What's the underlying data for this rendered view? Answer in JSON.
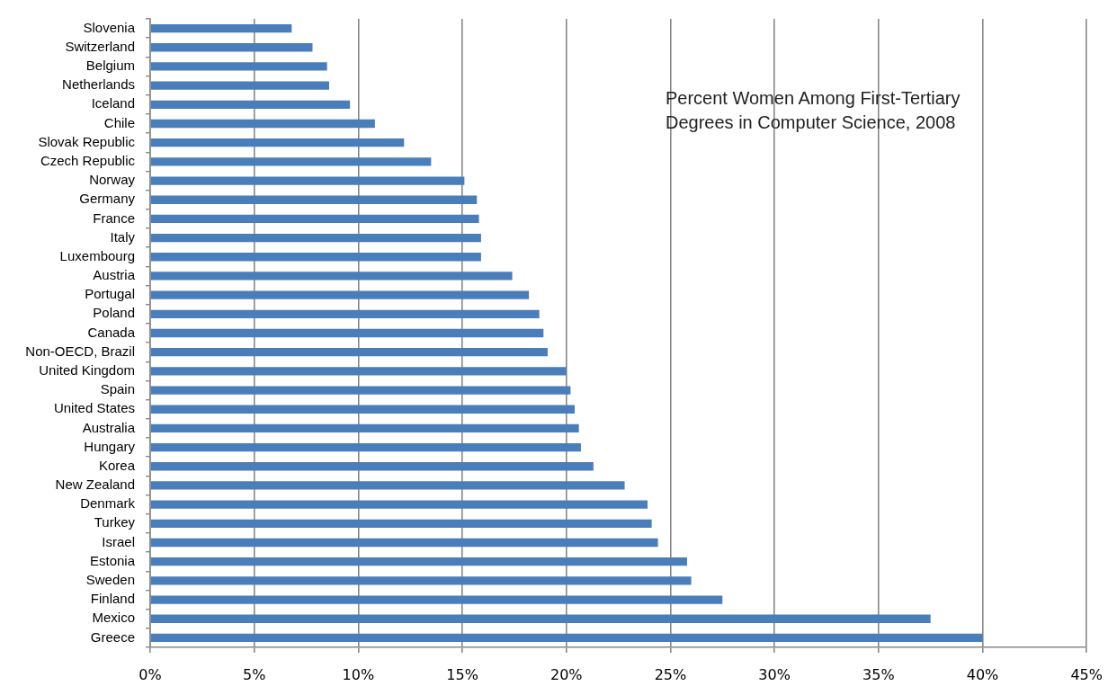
{
  "chart_data": {
    "type": "bar",
    "orientation": "horizontal",
    "title": "Percent Women Among First-Tertiary Degrees in Computer Science, 2008",
    "categories": [
      "Slovenia",
      "Switzerland",
      "Belgium",
      "Netherlands",
      "Iceland",
      "Chile",
      "Slovak Republic",
      "Czech Republic",
      "Norway",
      "Germany",
      "France",
      "Italy",
      "Luxembourg",
      "Austria",
      "Portugal",
      "Poland",
      "Canada",
      "Non-OECD, Brazil",
      "United Kingdom",
      "Spain",
      "United States",
      "Australia",
      "Hungary",
      "Korea",
      "New Zealand",
      "Denmark",
      "Turkey",
      "Israel",
      "Estonia",
      "Sweden",
      "Finland",
      "Mexico",
      "Greece"
    ],
    "values": [
      6.8,
      7.8,
      8.5,
      8.6,
      9.6,
      10.8,
      12.2,
      13.5,
      15.1,
      15.7,
      15.8,
      15.9,
      15.9,
      17.4,
      18.2,
      18.7,
      18.9,
      19.1,
      20.0,
      20.2,
      20.4,
      20.6,
      20.7,
      21.3,
      22.8,
      23.9,
      24.1,
      24.4,
      25.8,
      26.0,
      27.5,
      37.5,
      40.0
    ],
    "color": "#4a7ebb",
    "xlim": [
      0,
      45
    ],
    "xticks": [
      {
        "value": 0,
        "label": "0%"
      },
      {
        "value": 5,
        "label": "5%"
      },
      {
        "value": 10,
        "label": "10%"
      },
      {
        "value": 15,
        "label": "15%"
      },
      {
        "value": 20,
        "label": "20%"
      },
      {
        "value": 25,
        "label": "25%"
      },
      {
        "value": 30,
        "label": "30%"
      },
      {
        "value": 35,
        "label": "35%"
      },
      {
        "value": 40,
        "label": "40%"
      },
      {
        "value": 45,
        "label": "45%"
      }
    ],
    "grid": "x"
  }
}
